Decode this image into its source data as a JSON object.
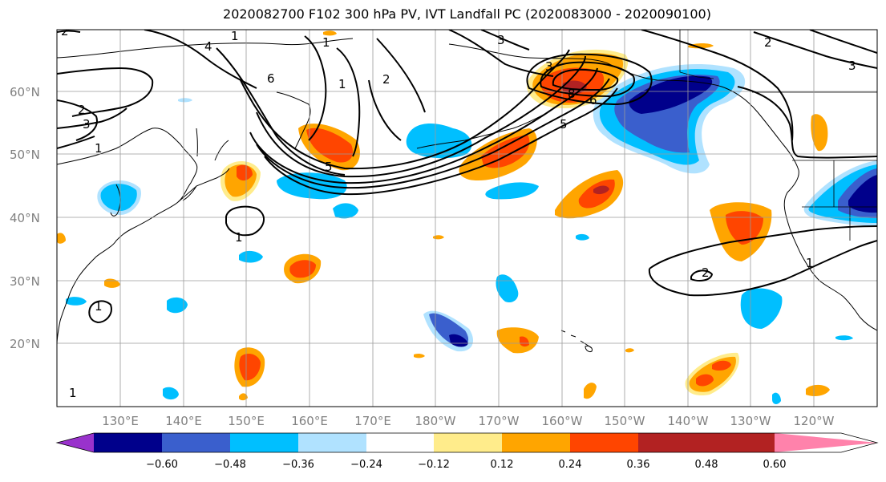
{
  "title": "2020082700 F102 300 hPa PV, IVT Landfall PC (2020083000 - 2020090100)",
  "lat_labels": [
    "60°N",
    "50°N",
    "40°N",
    "30°N",
    "20°N"
  ],
  "lon_labels": [
    "130°E",
    "140°E",
    "150°E",
    "160°E",
    "170°E",
    "180°W",
    "170°W",
    "160°W",
    "150°W",
    "140°W",
    "130°W",
    "120°W"
  ],
  "colorbar": {
    "colors": [
      "#9932cc",
      "#00008b",
      "#3a5fcd",
      "#00bfff",
      "#b0e2ff",
      "#ffffff",
      "#ffec8b",
      "#ffa500",
      "#ff4500",
      "#b22222",
      "#ff82ab"
    ],
    "labels": [
      "−0.60",
      "−0.48",
      "−0.36",
      "−0.24",
      "−0.12",
      "0.12",
      "0.24",
      "0.36",
      "0.48",
      "0.60"
    ]
  },
  "contour_labels": [
    "2",
    "3",
    "1",
    "4",
    "1",
    "1",
    "2",
    "3",
    "3",
    "6",
    "5",
    "6",
    "8",
    "1",
    "5",
    "2",
    "3",
    "2",
    "1",
    "1",
    "2",
    "1",
    "1"
  ]
}
